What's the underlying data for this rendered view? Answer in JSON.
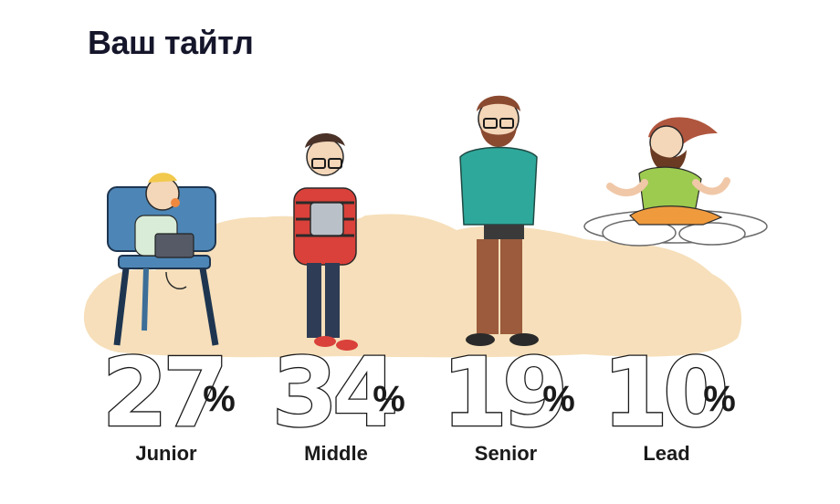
{
  "page": {
    "title": "Ваш тайтл"
  },
  "chart_data": {
    "type": "bar",
    "title": "Ваш тайтл",
    "categories": [
      "Junior",
      "Middle",
      "Senior",
      "Lead"
    ],
    "values": [
      27,
      34,
      19,
      10
    ],
    "value_suffix": "%",
    "colors": {
      "background_blob": "#f5dcb5",
      "text": "#1a1a1a",
      "title": "#15162b"
    }
  }
}
